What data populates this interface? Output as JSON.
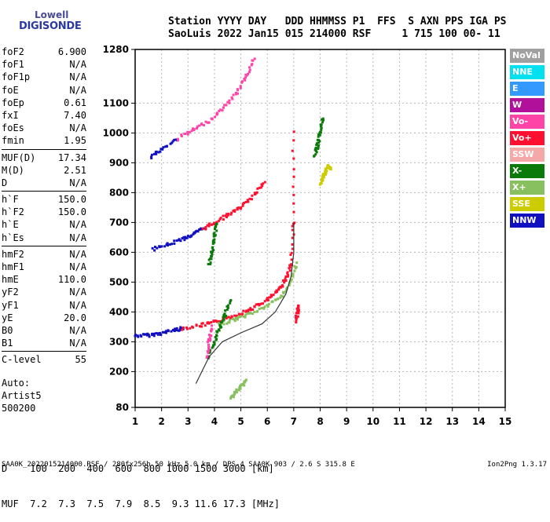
{
  "logo": {
    "line1": "Lowell",
    "line2": "DIGISONDE"
  },
  "header": {
    "row1": "Station YYYY DAY   DDD HHMMSS P1  FFS  S AXN PPS IGA PS",
    "row2": "SaoLuis 2022 Jan15 015 214000 RSF     1 715 100 00- 11"
  },
  "params": [
    [
      {
        "name": "foF2",
        "value": "6.900"
      },
      {
        "name": "foF1",
        "value": "N/A"
      },
      {
        "name": "foF1p",
        "value": "N/A"
      },
      {
        "name": "foE",
        "value": "N/A"
      },
      {
        "name": "foEp",
        "value": "0.61"
      },
      {
        "name": "fxI",
        "value": "7.40"
      },
      {
        "name": "foEs",
        "value": "N/A"
      },
      {
        "name": "fmin",
        "value": "1.95"
      }
    ],
    [
      {
        "name": "MUF(D)",
        "value": "17.34"
      },
      {
        "name": "M(D)",
        "value": "2.51"
      },
      {
        "name": "D",
        "value": "N/A"
      }
    ],
    [
      {
        "name": "h`F",
        "value": "150.0"
      },
      {
        "name": "h`F2",
        "value": "150.0"
      },
      {
        "name": "h`E",
        "value": "N/A"
      },
      {
        "name": "h`Es",
        "value": "N/A"
      }
    ],
    [
      {
        "name": "hmF2",
        "value": "N/A"
      },
      {
        "name": "hmF1",
        "value": "N/A"
      },
      {
        "name": "hmE",
        "value": "110.0"
      },
      {
        "name": "yF2",
        "value": "N/A"
      },
      {
        "name": "yF1",
        "value": "N/A"
      },
      {
        "name": "yE",
        "value": "20.0"
      },
      {
        "name": "B0",
        "value": "N/A"
      },
      {
        "name": "B1",
        "value": "N/A"
      }
    ],
    [
      {
        "name": "C-level",
        "value": "55"
      }
    ]
  ],
  "auto": {
    "line1": "Auto:",
    "line2": "Artist5",
    "line3": "500200"
  },
  "legend": [
    {
      "label": "NoVal",
      "color": "#a0a0a0"
    },
    {
      "label": "NNE",
      "color": "#00e0f0"
    },
    {
      "label": "E",
      "color": "#3399ff"
    },
    {
      "label": "W",
      "color": "#b0109a"
    },
    {
      "label": "Vo-",
      "color": "#ff44a8"
    },
    {
      "label": "Vo+",
      "color": "#ff1030"
    },
    {
      "label": "SSW",
      "color": "#f4a8a8"
    },
    {
      "label": "X-",
      "color": "#0a7a0a"
    },
    {
      "label": "X+",
      "color": "#88c060"
    },
    {
      "label": "SSE",
      "color": "#cccc00"
    },
    {
      "label": "NNW",
      "color": "#1010c0"
    }
  ],
  "muf_table": {
    "d_label": "D",
    "d_values": [
      "100",
      "200",
      "400",
      "600",
      "800",
      "1000",
      "1500",
      "3000"
    ],
    "d_unit": "[km]",
    "muf_label": "MUF",
    "muf_values": [
      "7.2",
      "7.3",
      "7.5",
      "7.9",
      "8.5",
      "9.3",
      "11.6",
      "17.3"
    ],
    "muf_unit": "[MHz]"
  },
  "footer": {
    "left": "SAA0K_2022015214000.RSF / 280fx256h 50 kHz 5.0 km / DPS-4 SAA0K 903 / 2.6 S 315.8 E",
    "right": "Ion2Png 1.3.17"
  },
  "chart_data": {
    "type": "scatter",
    "xlim": [
      1,
      15
    ],
    "ylim": [
      80,
      1280
    ],
    "x_ticks": [
      1,
      2,
      3,
      4,
      5,
      6,
      7,
      8,
      9,
      10,
      11,
      12,
      13,
      14,
      15
    ],
    "y_ticks": [
      80,
      200,
      300,
      400,
      500,
      600,
      700,
      800,
      900,
      1000,
      1100,
      1280
    ],
    "grid": true,
    "traces": [
      {
        "name": "NNW",
        "color": "#1010c0",
        "points": [
          [
            1.0,
            320
          ],
          [
            1.5,
            322
          ],
          [
            2.0,
            328
          ],
          [
            2.5,
            340
          ],
          [
            2.8,
            345
          ]
        ]
      },
      {
        "name": "Vo+",
        "color": "#ff1030",
        "points": [
          [
            2.8,
            345
          ],
          [
            3.5,
            355
          ],
          [
            4.0,
            365
          ],
          [
            4.5,
            380
          ],
          [
            5.0,
            395
          ],
          [
            5.5,
            415
          ],
          [
            6.0,
            440
          ],
          [
            6.4,
            470
          ],
          [
            6.7,
            510
          ],
          [
            6.9,
            560
          ],
          [
            7.0,
            700
          ],
          [
            7.0,
            1000
          ]
        ]
      },
      {
        "name": "X+",
        "color": "#88c060",
        "points": [
          [
            4.2,
            360
          ],
          [
            4.8,
            375
          ],
          [
            5.4,
            395
          ],
          [
            6.0,
            420
          ],
          [
            6.5,
            450
          ],
          [
            6.9,
            500
          ],
          [
            7.1,
            560
          ]
        ]
      },
      {
        "name": "NNW",
        "color": "#1010c0",
        "points": [
          [
            1.7,
            610
          ],
          [
            2.2,
            625
          ],
          [
            2.8,
            645
          ],
          [
            3.2,
            660
          ],
          [
            3.6,
            680
          ]
        ]
      },
      {
        "name": "Vo+",
        "color": "#ff1030",
        "points": [
          [
            3.6,
            680
          ],
          [
            4.0,
            700
          ],
          [
            4.5,
            725
          ],
          [
            5.0,
            750
          ],
          [
            5.5,
            790
          ],
          [
            5.9,
            840
          ]
        ]
      },
      {
        "name": "NNW",
        "color": "#1010c0",
        "points": [
          [
            1.6,
            920
          ],
          [
            2.0,
            945
          ],
          [
            2.6,
            980
          ]
        ]
      },
      {
        "name": "Vo-",
        "color": "#ff44a8",
        "points": [
          [
            2.6,
            980
          ],
          [
            3.2,
            1010
          ],
          [
            3.8,
            1040
          ],
          [
            4.3,
            1080
          ],
          [
            4.8,
            1130
          ],
          [
            5.2,
            1190
          ],
          [
            5.5,
            1250
          ]
        ]
      },
      {
        "name": "X-",
        "color": "#0a7a0a",
        "points": [
          [
            3.8,
            250
          ],
          [
            4.0,
            300
          ],
          [
            4.2,
            350
          ],
          [
            4.4,
            390
          ],
          [
            4.6,
            440
          ]
        ]
      },
      {
        "name": "X-",
        "color": "#0a7a0a",
        "points": [
          [
            3.8,
            560
          ],
          [
            3.9,
            600
          ],
          [
            4.0,
            650
          ],
          [
            4.1,
            700
          ]
        ]
      },
      {
        "name": "Vo-",
        "color": "#ff44a8",
        "points": [
          [
            3.7,
            250
          ],
          [
            3.8,
            300
          ],
          [
            3.9,
            350
          ]
        ]
      },
      {
        "name": "SSE",
        "color": "#cccc00",
        "points": [
          [
            8.0,
            830
          ],
          [
            8.1,
            850
          ],
          [
            8.2,
            870
          ],
          [
            8.3,
            890
          ],
          [
            8.4,
            880
          ]
        ]
      },
      {
        "name": "X-",
        "color": "#0a7a0a",
        "points": [
          [
            7.8,
            920
          ],
          [
            7.9,
            960
          ],
          [
            8.0,
            1000
          ],
          [
            8.1,
            1050
          ]
        ]
      },
      {
        "name": "Vo+",
        "color": "#ff1030",
        "points": [
          [
            7.1,
            370
          ],
          [
            7.15,
            400
          ],
          [
            7.2,
            420
          ]
        ]
      },
      {
        "name": "X+",
        "color": "#88c060",
        "points": [
          [
            4.6,
            110
          ],
          [
            4.8,
            130
          ],
          [
            5.0,
            150
          ],
          [
            5.2,
            170
          ]
        ]
      }
    ],
    "black_trace": [
      [
        3.3,
        160
      ],
      [
        3.8,
        250
      ],
      [
        4.3,
        300
      ],
      [
        5.0,
        330
      ],
      [
        5.8,
        360
      ],
      [
        6.3,
        400
      ],
      [
        6.7,
        460
      ],
      [
        6.9,
        520
      ],
      [
        7.0,
        600
      ],
      [
        7.0,
        700
      ]
    ]
  }
}
